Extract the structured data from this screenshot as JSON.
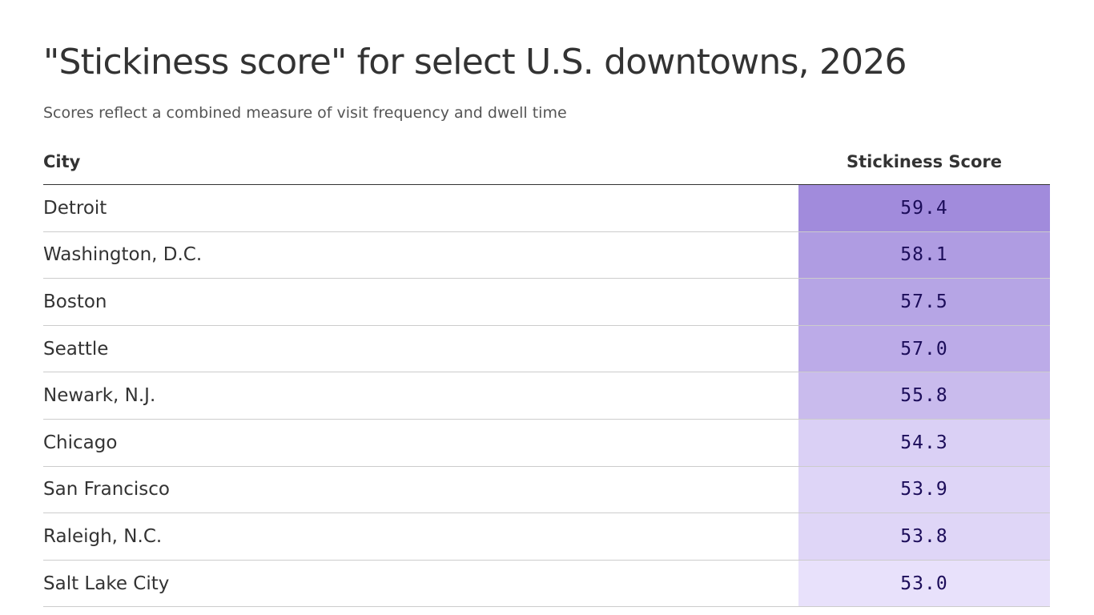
{
  "title": "\"Stickiness score\" for select U.S. downtowns, 2026",
  "subtitle": "Scores reflect a combined measure of visit frequency and dwell time",
  "table": {
    "headers": {
      "city": "City",
      "score": "Stickiness Score"
    }
  },
  "colors": {
    "score_low": "#e8e1fb",
    "score_high": "#a18bdc",
    "score_text": "#1c0d5a"
  },
  "chart_data": {
    "type": "table",
    "title": "\"Stickiness score\" for select U.S. downtowns, 2026",
    "subtitle": "Scores reflect a combined measure of visit frequency and dwell time",
    "columns": [
      "City",
      "Stickiness Score"
    ],
    "rows": [
      {
        "city": "Detroit",
        "score": "59.4",
        "value": 59.4
      },
      {
        "city": "Washington, D.C.",
        "score": "58.1",
        "value": 58.1
      },
      {
        "city": "Boston",
        "score": "57.5",
        "value": 57.5
      },
      {
        "city": "Seattle",
        "score": "57.0",
        "value": 57.0
      },
      {
        "city": "Newark, N.J.",
        "score": "55.8",
        "value": 55.8
      },
      {
        "city": "Chicago",
        "score": "54.3",
        "value": 54.3
      },
      {
        "city": "San Francisco",
        "score": "53.9",
        "value": 53.9
      },
      {
        "city": "Raleigh, N.C.",
        "score": "53.8",
        "value": 53.8
      },
      {
        "city": "Salt Lake City",
        "score": "53.0",
        "value": 53.0
      }
    ]
  }
}
